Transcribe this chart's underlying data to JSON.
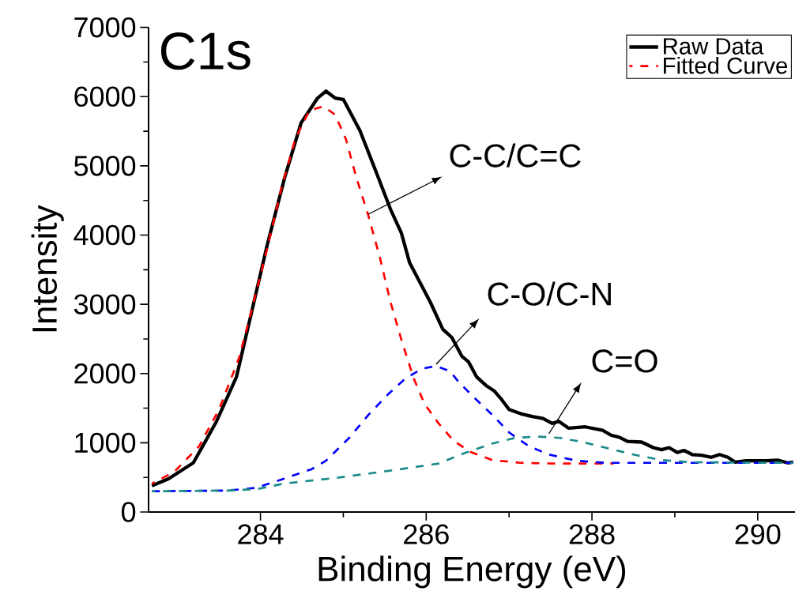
{
  "chart_data": {
    "type": "line",
    "title": "C1s",
    "xlabel": "Binding Energy (eV)",
    "ylabel": "Intensity",
    "xlim": [
      282.65,
      290.45
    ],
    "xticks": [
      284,
      286,
      288,
      290
    ],
    "ylim": [
      0,
      7000
    ],
    "yticks": [
      0,
      1000,
      2000,
      3000,
      4000,
      5000,
      6000,
      7000
    ],
    "legend": "top right",
    "grid": false,
    "marker": "none",
    "series": [
      {
        "name": "Raw Data",
        "color": "#000000",
        "line_style": "solid",
        "x": [
          282.69,
          282.89,
          283.19,
          283.47,
          283.71,
          283.88,
          284.08,
          284.29,
          284.49,
          284.69,
          284.79,
          284.9,
          285.0,
          285.2,
          285.4,
          285.57,
          285.7,
          285.8,
          286.05,
          286.2,
          286.31,
          286.43,
          286.51,
          286.61,
          286.72,
          286.82,
          286.9,
          287.0,
          287.14,
          287.28,
          287.41,
          287.52,
          287.6,
          287.72,
          287.92,
          288.13,
          288.23,
          288.33,
          288.43,
          288.6,
          288.74,
          288.84,
          288.93,
          289.03,
          289.11,
          289.21,
          289.32,
          289.44,
          289.54,
          289.64,
          289.73,
          289.86,
          290.1,
          290.24,
          290.36,
          290.43
        ],
        "values": [
          380,
          480,
          710,
          1310,
          1950,
          2820,
          3850,
          4820,
          5620,
          5980,
          6080,
          5980,
          5960,
          5510,
          4900,
          4370,
          4030,
          3600,
          3030,
          2640,
          2520,
          2250,
          2170,
          1950,
          1830,
          1750,
          1640,
          1480,
          1420,
          1380,
          1350,
          1280,
          1310,
          1210,
          1230,
          1180,
          1110,
          1080,
          1020,
          1010,
          930,
          900,
          930,
          860,
          890,
          830,
          820,
          790,
          830,
          790,
          720,
          740,
          740,
          750,
          710,
          720
        ]
      },
      {
        "name": "Fitted Curve",
        "color": "#ff0000",
        "line_style": "dashed",
        "x": [
          282.69,
          282.96,
          283.26,
          283.5,
          283.74,
          283.91,
          284.08,
          284.25,
          284.42,
          284.59,
          284.76,
          284.9,
          285.03,
          285.16,
          285.3,
          285.44,
          285.57,
          285.71,
          285.85,
          285.98,
          286.15,
          286.33,
          286.53,
          286.8,
          287.14,
          287.55,
          288.26
        ],
        "values": [
          410,
          580,
          950,
          1480,
          2220,
          2990,
          3800,
          4660,
          5390,
          5800,
          5860,
          5740,
          5390,
          4820,
          4290,
          3680,
          3030,
          2450,
          1930,
          1560,
          1280,
          1030,
          870,
          750,
          710,
          700,
          700
        ]
      },
      {
        "color": "#0000ff",
        "line_style": "dashed",
        "x": [
          282.69,
          283.6,
          283.95,
          284.28,
          284.62,
          284.79,
          285.07,
          285.3,
          285.54,
          285.75,
          285.95,
          286.12,
          286.29,
          286.39,
          286.59,
          286.8,
          287.0,
          287.24,
          287.48,
          287.82,
          288.16,
          288.84,
          290.43
        ],
        "values": [
          300,
          310,
          350,
          480,
          620,
          740,
          1070,
          1400,
          1700,
          1930,
          2070,
          2110,
          2030,
          1880,
          1640,
          1400,
          1150,
          950,
          830,
          740,
          710,
          710,
          710
        ]
      },
      {
        "color": "#1a8a8a",
        "line_style": "dashed",
        "x": [
          282.69,
          283.6,
          283.95,
          284.28,
          284.96,
          285.64,
          286.15,
          286.46,
          286.8,
          287.07,
          287.34,
          287.62,
          287.89,
          288.16,
          288.5,
          288.84,
          289.18,
          290.43
        ],
        "values": [
          300,
          310,
          330,
          410,
          500,
          610,
          700,
          850,
          990,
          1070,
          1090,
          1070,
          1010,
          930,
          830,
          750,
          720,
          710
        ]
      }
    ],
    "annotations": [
      {
        "text": "C-C/C=C",
        "x": 285.3,
        "y": 4300
      },
      {
        "text": "C-O/C-N",
        "x": 286.12,
        "y": 2135
      },
      {
        "text": "C=O",
        "x": 287.48,
        "y": 1130
      }
    ]
  }
}
